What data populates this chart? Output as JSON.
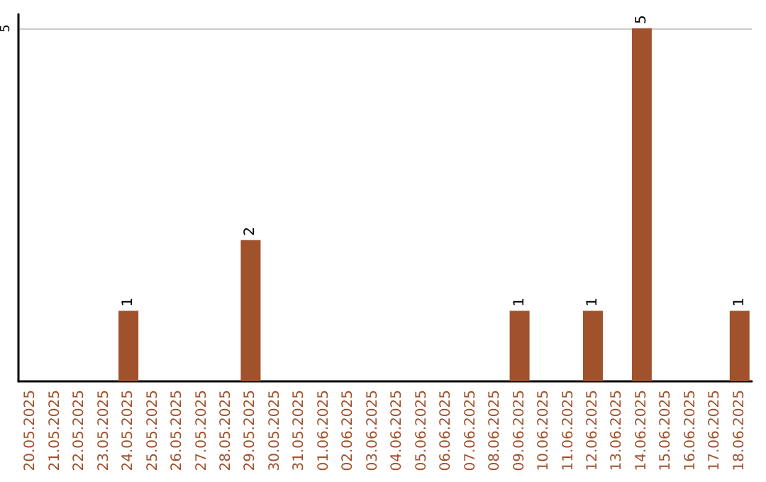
{
  "chart_data": {
    "type": "bar",
    "categories": [
      "20.05.2025",
      "21.05.2025",
      "22.05.2025",
      "23.05.2025",
      "24.05.2025",
      "25.05.2025",
      "26.05.2025",
      "27.05.2025",
      "28.05.2025",
      "29.05.2025",
      "30.05.2025",
      "31.05.2025",
      "01.06.2025",
      "02.06.2025",
      "03.06.2025",
      "04.06.2025",
      "05.06.2025",
      "06.06.2025",
      "07.06.2025",
      "08.06.2025",
      "09.06.2025",
      "10.06.2025",
      "11.06.2025",
      "12.06.2025",
      "13.06.2025",
      "14.06.2025",
      "15.06.2025",
      "16.06.2025",
      "17.06.2025",
      "18.06.2025"
    ],
    "values": [
      0,
      0,
      0,
      0,
      1,
      0,
      0,
      0,
      0,
      2,
      0,
      0,
      0,
      0,
      0,
      0,
      0,
      0,
      0,
      0,
      1,
      0,
      0,
      1,
      0,
      5,
      0,
      0,
      0,
      1
    ],
    "value_labels": [
      null,
      null,
      null,
      null,
      "1",
      null,
      null,
      null,
      null,
      "2",
      null,
      null,
      null,
      null,
      null,
      null,
      null,
      null,
      null,
      null,
      "1",
      null,
      null,
      "1",
      null,
      "5",
      null,
      null,
      null,
      "1"
    ],
    "color": "#a0522d",
    "ylim": [
      0,
      5.2
    ],
    "yticks": [
      5
    ],
    "grid": "y"
  }
}
